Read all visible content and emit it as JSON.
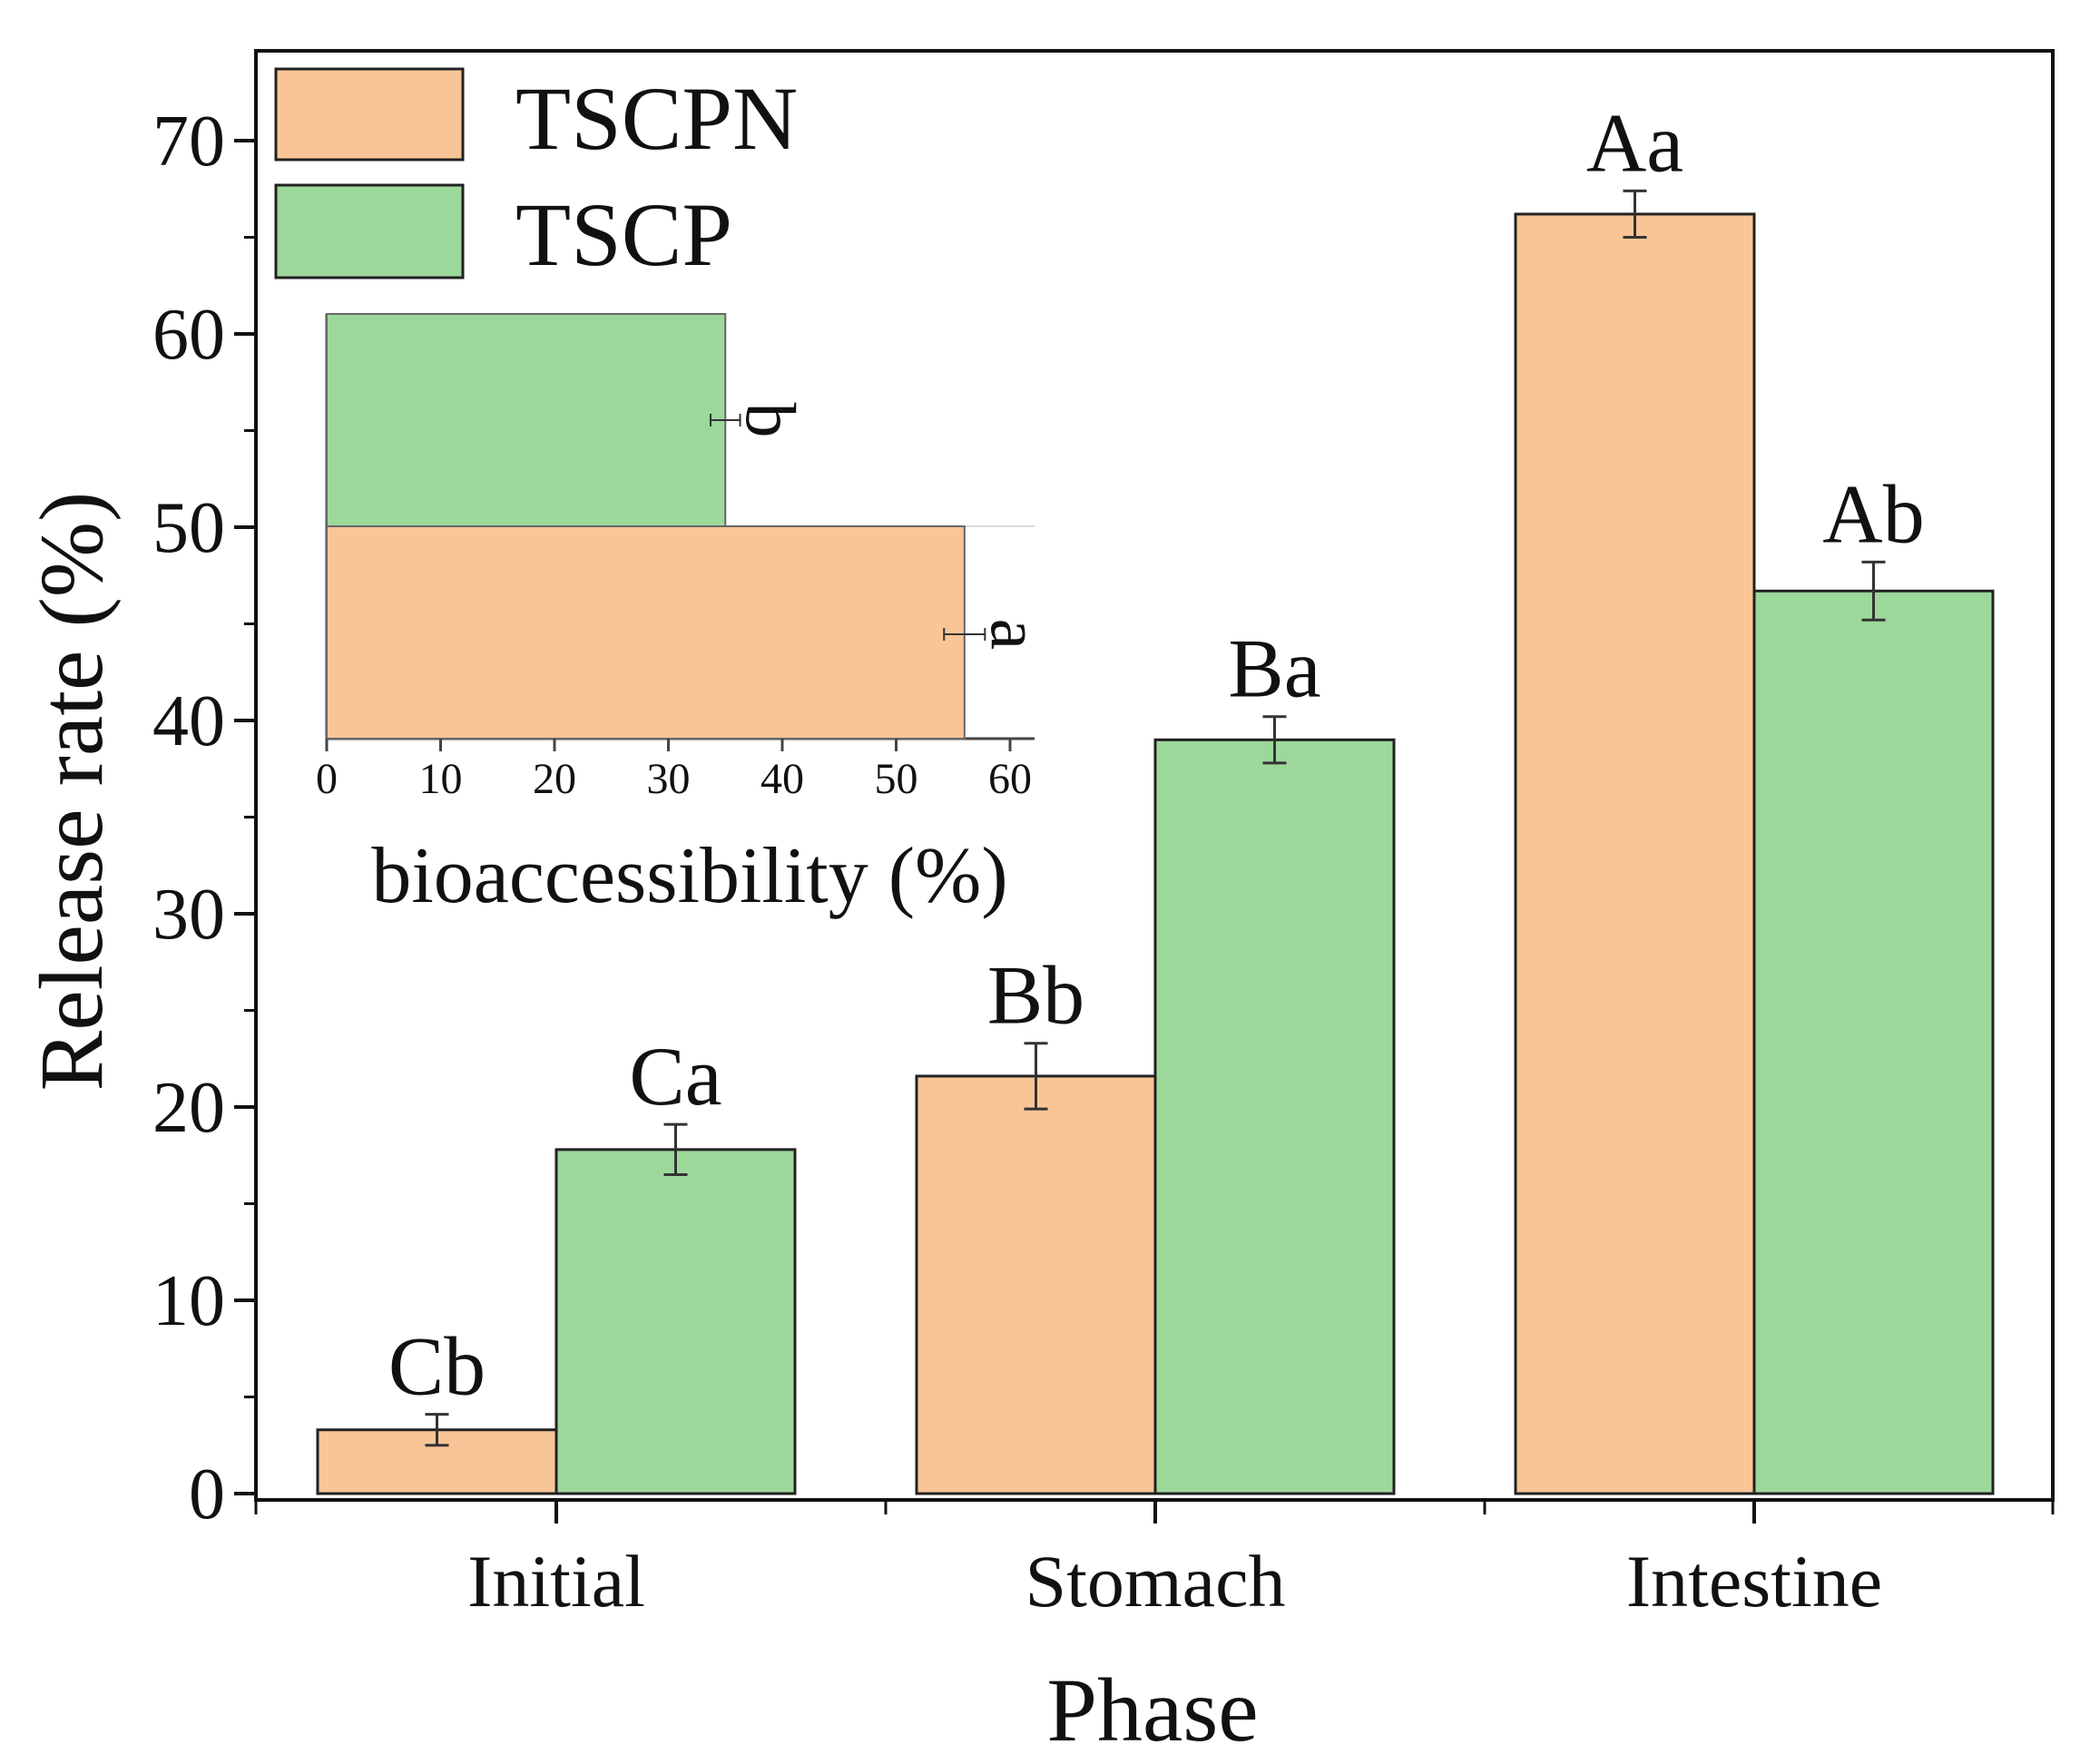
{
  "chart_data": [
    {
      "type": "bar",
      "title": "",
      "xlabel": "Phase",
      "ylabel": "Release rate (%)",
      "ylim": [
        0,
        75
      ],
      "yticks": [
        0,
        10,
        20,
        30,
        40,
        50,
        60,
        70
      ],
      "categories": [
        "Initial",
        "Stomach",
        "Intestine"
      ],
      "series": [
        {
          "name": "TSCPN",
          "color": "#F9C596",
          "values": [
            3.3,
            21.6,
            66.2
          ],
          "errors": [
            0.8,
            1.7,
            1.2
          ],
          "labels": [
            "Cb",
            "Bb",
            "Aa"
          ]
        },
        {
          "name": "TSCP",
          "color": "#9DD89B",
          "values": [
            17.8,
            39.0,
            46.7
          ],
          "errors": [
            1.3,
            1.2,
            1.5
          ],
          "labels": [
            "Ca",
            "Ba",
            "Ab"
          ]
        }
      ],
      "legend": "top-left"
    },
    {
      "type": "bar",
      "orientation": "horizontal",
      "xlabel": "bioaccessibility (%)",
      "xlim": [
        0,
        62
      ],
      "xticks": [
        0,
        10,
        20,
        30,
        40,
        50,
        60
      ],
      "categories": [
        "TSCPN",
        "TSCP"
      ],
      "values": [
        56.0,
        35.0
      ],
      "errors": [
        1.0,
        0.5
      ],
      "colors": [
        "#F9C596",
        "#9DD89B"
      ],
      "labels": [
        "a",
        "b"
      ],
      "placement": "inset top-left"
    }
  ]
}
